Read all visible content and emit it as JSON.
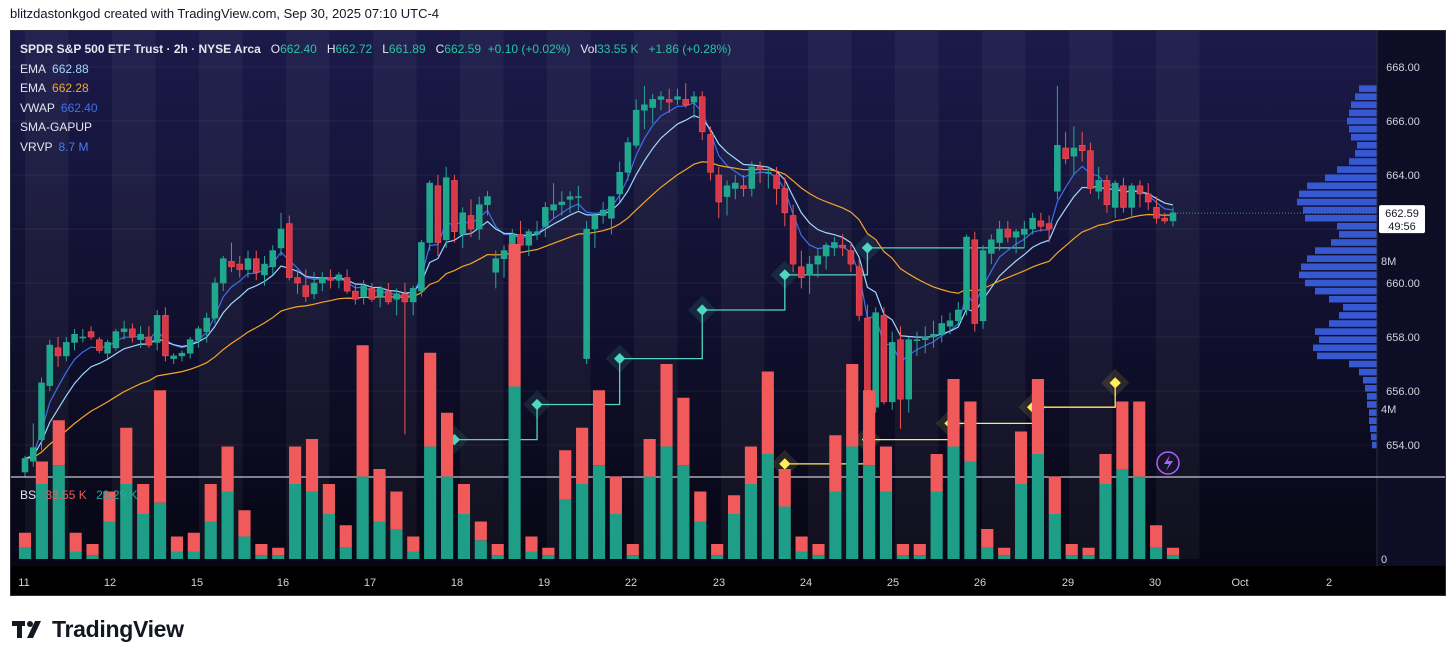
{
  "header": {
    "text": "blitzdastonkgod created with TradingView.com, Sep 30, 2025 07:10 UTC-4"
  },
  "legend": {
    "symbol": "SPDR S&P 500 ETF Trust · 2h · NYSE Arca",
    "open_label": "O",
    "open": "662.40",
    "high_label": "H",
    "high": "662.72",
    "low_label": "L",
    "low": "661.89",
    "close_label": "C",
    "close": "662.59",
    "change": "+0.10 (+0.02%)",
    "vol_label": "Vol",
    "vol": "33.55 K",
    "vol_change": "+1.86 (+0.28%)",
    "indicators": [
      {
        "name": "EMA",
        "value": "662.88"
      },
      {
        "name": "EMA",
        "value": "662.28"
      },
      {
        "name": "VWAP",
        "value": "662.40"
      },
      {
        "name": "SMA-GAPUP",
        "value": ""
      },
      {
        "name": "VRVP",
        "value": "8.7 M"
      }
    ]
  },
  "bs": {
    "label": "BS",
    "sell": "33.55 K",
    "buy": "28.29 K"
  },
  "price_axis": {
    "ticks": [
      "668.00",
      "666.00",
      "664.00",
      "662.00",
      "660.00",
      "658.00",
      "656.00",
      "654.00"
    ]
  },
  "last_price": {
    "value": "662.59",
    "countdown": "49:56"
  },
  "volume_axis": {
    "ticks": [
      "8M",
      "4M",
      "0"
    ]
  },
  "time_axis": {
    "ticks": [
      "11",
      "12",
      "15",
      "16",
      "17",
      "18",
      "19",
      "22",
      "23",
      "24",
      "25",
      "26",
      "29",
      "30",
      "Oct",
      "2"
    ]
  },
  "colors": {
    "bull": "#26a69a",
    "bear": "#ef5350",
    "ema_fast": "#9fd7ff",
    "ema_slow": "#f5a623",
    "vwap": "#3d6ff0",
    "vrvp": "#3a5fe0",
    "gap_teal": "#4fd6c0",
    "gap_yellow": "#ffee58",
    "bs_sell": "#f05a5a",
    "bs_buy": "#1e9e87"
  },
  "footer": {
    "logo_text": "TradingView"
  },
  "chart_data": {
    "type": "candlestick",
    "interval": "2h",
    "ylim": [
      653.0,
      669.0
    ],
    "x_categories": [
      "11",
      "12",
      "15",
      "16",
      "17",
      "18",
      "19",
      "22",
      "23",
      "24",
      "25",
      "26",
      "29",
      "30",
      "Oct",
      "2"
    ],
    "candles": [
      [
        653.0,
        653.6,
        652.8,
        653.5
      ],
      [
        653.4,
        654.8,
        653.2,
        653.9
      ],
      [
        654.2,
        656.5,
        653.8,
        656.3
      ],
      [
        656.2,
        657.9,
        656.0,
        657.7
      ],
      [
        657.6,
        658.0,
        656.9,
        657.3
      ],
      [
        657.3,
        658.0,
        657.1,
        657.8
      ],
      [
        657.8,
        658.3,
        657.5,
        658.1
      ],
      [
        658.0,
        658.3,
        657.8,
        658.0
      ],
      [
        658.2,
        658.4,
        657.9,
        658.0
      ],
      [
        657.9,
        658.0,
        657.4,
        657.5
      ],
      [
        657.4,
        657.9,
        657.2,
        657.8
      ],
      [
        657.6,
        658.3,
        657.5,
        658.2
      ],
      [
        658.2,
        658.6,
        657.9,
        658.3
      ],
      [
        658.3,
        658.5,
        657.8,
        658.0
      ],
      [
        657.9,
        658.4,
        657.6,
        658.1
      ],
      [
        658.0,
        658.4,
        657.6,
        657.7
      ],
      [
        657.8,
        659.0,
        657.5,
        658.8
      ],
      [
        658.8,
        659.1,
        657.1,
        657.3
      ],
      [
        657.2,
        657.4,
        657.0,
        657.3
      ],
      [
        657.3,
        657.5,
        657.1,
        657.4
      ],
      [
        657.4,
        658.0,
        657.2,
        657.9
      ],
      [
        657.9,
        658.4,
        657.6,
        658.3
      ],
      [
        658.2,
        658.9,
        657.8,
        658.7
      ],
      [
        658.7,
        660.2,
        658.5,
        660.0
      ],
      [
        660.0,
        661.0,
        659.7,
        660.9
      ],
      [
        660.8,
        661.5,
        660.4,
        660.6
      ],
      [
        660.7,
        661.0,
        660.2,
        660.5
      ],
      [
        660.5,
        661.2,
        660.2,
        660.9
      ],
      [
        660.9,
        661.2,
        660.1,
        660.4
      ],
      [
        660.3,
        661.0,
        659.9,
        660.7
      ],
      [
        660.6,
        661.4,
        660.3,
        661.2
      ],
      [
        661.3,
        662.6,
        661.0,
        662.0
      ],
      [
        662.2,
        662.5,
        660.1,
        660.2
      ],
      [
        660.2,
        660.5,
        659.6,
        660.0
      ],
      [
        659.9,
        660.5,
        659.3,
        659.5
      ],
      [
        659.6,
        660.4,
        659.4,
        660.0
      ],
      [
        660.0,
        660.4,
        659.7,
        660.2
      ],
      [
        660.2,
        660.5,
        659.8,
        660.1
      ],
      [
        660.1,
        660.4,
        659.8,
        660.3
      ],
      [
        660.2,
        660.5,
        659.6,
        659.7
      ],
      [
        659.7,
        660.0,
        659.2,
        659.4
      ],
      [
        659.5,
        660.1,
        659.2,
        659.9
      ],
      [
        659.8,
        660.0,
        659.3,
        659.4
      ],
      [
        659.5,
        659.9,
        659.1,
        659.8
      ],
      [
        659.7,
        660.0,
        659.2,
        659.3
      ],
      [
        659.4,
        659.8,
        658.8,
        659.6
      ],
      [
        659.6,
        660.0,
        654.4,
        659.3
      ],
      [
        659.3,
        659.9,
        658.8,
        659.8
      ],
      [
        659.7,
        661.6,
        659.5,
        661.5
      ],
      [
        661.5,
        663.8,
        661.2,
        663.7
      ],
      [
        663.6,
        664.0,
        661.0,
        661.5
      ],
      [
        661.6,
        664.3,
        661.3,
        663.9
      ],
      [
        663.8,
        664.0,
        661.5,
        661.9
      ],
      [
        661.8,
        662.8,
        661.3,
        662.6
      ],
      [
        662.5,
        663.1,
        661.7,
        662.0
      ],
      [
        662.0,
        663.2,
        661.6,
        662.9
      ],
      [
        662.9,
        663.4,
        662.5,
        663.2
      ],
      [
        660.4,
        661.2,
        659.8,
        660.9
      ],
      [
        660.9,
        661.4,
        660.2,
        661.2
      ],
      [
        661.3,
        662.0,
        660.2,
        661.8
      ],
      [
        661.8,
        662.3,
        661.4,
        661.4
      ],
      [
        661.4,
        662.0,
        661.0,
        661.9
      ],
      [
        661.8,
        662.3,
        661.6,
        661.9
      ],
      [
        662.1,
        663.0,
        661.7,
        662.8
      ],
      [
        662.7,
        663.7,
        662.4,
        662.9
      ],
      [
        662.9,
        663.4,
        662.5,
        663.0
      ],
      [
        663.1,
        663.4,
        662.6,
        663.2
      ],
      [
        663.2,
        663.6,
        662.7,
        663.2
      ],
      [
        657.2,
        662.3,
        657.0,
        662.0
      ],
      [
        662.0,
        662.6,
        661.3,
        662.5
      ],
      [
        662.5,
        663.0,
        662.2,
        662.7
      ],
      [
        662.4,
        663.1,
        661.8,
        663.2
      ],
      [
        663.3,
        664.5,
        663.0,
        664.1
      ],
      [
        664.1,
        665.4,
        663.8,
        665.2
      ],
      [
        665.1,
        666.8,
        665.0,
        666.4
      ],
      [
        666.4,
        667.3,
        665.7,
        666.6
      ],
      [
        666.5,
        667.0,
        665.9,
        666.8
      ],
      [
        666.8,
        667.1,
        666.4,
        666.9
      ],
      [
        666.8,
        667.2,
        666.3,
        666.7
      ],
      [
        666.8,
        667.2,
        666.6,
        666.9
      ],
      [
        666.8,
        667.4,
        666.5,
        666.6
      ],
      [
        666.7,
        667.1,
        666.1,
        666.9
      ],
      [
        666.9,
        667.1,
        665.3,
        665.6
      ],
      [
        665.5,
        665.8,
        663.8,
        664.1
      ],
      [
        664.0,
        664.3,
        662.4,
        663.0
      ],
      [
        663.2,
        663.8,
        662.5,
        663.6
      ],
      [
        663.5,
        664.0,
        663.1,
        663.7
      ],
      [
        663.6,
        664.0,
        663.2,
        663.5
      ],
      [
        663.5,
        664.5,
        663.2,
        664.3
      ],
      [
        664.3,
        664.5,
        663.7,
        664.2
      ],
      [
        664.1,
        664.3,
        663.5,
        664.1
      ],
      [
        664.0,
        664.3,
        662.9,
        663.5
      ],
      [
        663.5,
        663.9,
        662.1,
        662.6
      ],
      [
        662.5,
        662.9,
        660.4,
        660.7
      ],
      [
        660.6,
        661.2,
        659.8,
        660.2
      ],
      [
        660.3,
        661.0,
        659.6,
        660.7
      ],
      [
        660.7,
        661.3,
        660.2,
        661.0
      ],
      [
        661.0,
        661.5,
        660.5,
        661.4
      ],
      [
        661.3,
        661.7,
        661.0,
        661.5
      ],
      [
        661.4,
        661.8,
        661.0,
        661.3
      ],
      [
        661.2,
        661.5,
        660.4,
        660.7
      ],
      [
        660.6,
        660.9,
        658.6,
        658.8
      ],
      [
        658.7,
        659.2,
        655.0,
        655.4
      ],
      [
        655.4,
        659.1,
        655.2,
        658.9
      ],
      [
        658.8,
        659.1,
        655.5,
        655.6
      ],
      [
        655.6,
        658.2,
        655.3,
        657.8
      ],
      [
        657.9,
        658.4,
        654.6,
        655.7
      ],
      [
        655.7,
        658.0,
        655.2,
        657.9
      ],
      [
        657.9,
        658.2,
        657.3,
        657.9
      ],
      [
        657.9,
        658.4,
        657.4,
        658.0
      ],
      [
        658.0,
        658.6,
        657.6,
        658.1
      ],
      [
        658.1,
        658.8,
        657.8,
        658.5
      ],
      [
        658.4,
        658.9,
        658.1,
        658.6
      ],
      [
        658.6,
        659.3,
        658.4,
        659.0
      ],
      [
        659.0,
        661.8,
        658.8,
        661.7
      ],
      [
        661.6,
        661.9,
        658.2,
        658.5
      ],
      [
        658.6,
        661.4,
        658.3,
        661.2
      ],
      [
        661.1,
        661.8,
        660.7,
        661.6
      ],
      [
        661.5,
        662.3,
        661.2,
        662.0
      ],
      [
        662.0,
        662.3,
        661.5,
        661.7
      ],
      [
        661.7,
        662.0,
        661.1,
        661.9
      ],
      [
        661.8,
        662.3,
        661.3,
        662.0
      ],
      [
        662.0,
        662.6,
        661.8,
        662.4
      ],
      [
        662.3,
        662.6,
        661.9,
        662.1
      ],
      [
        662.2,
        662.5,
        661.5,
        662.0
      ],
      [
        663.4,
        667.3,
        663.1,
        665.1
      ],
      [
        665.0,
        665.6,
        664.4,
        664.6
      ],
      [
        664.7,
        665.8,
        664.0,
        665.0
      ],
      [
        665.1,
        665.6,
        664.5,
        664.9
      ],
      [
        664.9,
        665.2,
        663.3,
        663.5
      ],
      [
        663.4,
        664.3,
        663.1,
        663.8
      ],
      [
        663.8,
        664.0,
        662.6,
        662.9
      ],
      [
        662.8,
        663.8,
        662.4,
        663.7
      ],
      [
        663.6,
        663.9,
        662.6,
        662.8
      ],
      [
        662.8,
        663.7,
        662.4,
        663.6
      ],
      [
        663.6,
        663.8,
        662.8,
        663.3
      ],
      [
        663.3,
        663.7,
        662.7,
        663.0
      ],
      [
        662.8,
        663.2,
        662.2,
        662.4
      ],
      [
        662.4,
        662.6,
        662.2,
        662.3
      ],
      [
        662.3,
        662.8,
        662.1,
        662.6
      ]
    ],
    "ema_fast_last": 662.88,
    "ema_slow_last": 662.28,
    "vwap_last": 662.4,
    "sma_gapup_steps_teal": [
      654.2,
      654.2,
      654.2,
      654.2,
      654.2,
      654.2,
      654.2,
      654.2,
      654.2,
      654.2,
      655.5,
      655.5,
      655.5,
      655.5,
      655.5,
      655.5,
      655.5,
      655.5,
      655.5,
      655.5,
      657.2,
      657.2,
      657.2,
      657.2,
      657.2,
      657.2,
      657.2,
      657.2,
      657.2,
      657.2,
      659.0,
      659.0,
      659.0,
      659.0,
      659.0,
      659.0,
      659.0,
      659.0,
      659.0,
      659.0,
      660.3,
      660.3,
      660.3,
      660.3,
      660.3,
      660.3,
      660.3,
      660.3,
      660.3,
      660.3,
      661.3,
      661.3,
      661.3,
      661.3,
      661.3,
      661.3,
      661.3,
      661.3,
      661.3,
      661.3,
      661.3,
      661.3,
      661.3,
      661.3,
      661.3,
      661.3,
      661.3,
      661.3,
      661.3,
      661.3
    ],
    "sma_gapup_steps_yellow": [
      653.3,
      653.3,
      653.3,
      653.3,
      653.3,
      653.3,
      653.3,
      653.3,
      653.3,
      653.3,
      654.2,
      654.2,
      654.2,
      654.2,
      654.2,
      654.2,
      654.2,
      654.2,
      654.2,
      654.2,
      654.8,
      654.8,
      654.8,
      654.8,
      654.8,
      654.8,
      654.8,
      654.8,
      654.8,
      654.8,
      655.4,
      655.4,
      655.4,
      655.4,
      655.4,
      655.4,
      655.4,
      655.4,
      655.4,
      655.4,
      656.3
    ],
    "volume_profile": [
      [
        667.2,
        18
      ],
      [
        666.9,
        22
      ],
      [
        666.6,
        26
      ],
      [
        666.3,
        28
      ],
      [
        666.0,
        30
      ],
      [
        665.7,
        28
      ],
      [
        665.4,
        26
      ],
      [
        665.1,
        20
      ],
      [
        664.8,
        22
      ],
      [
        664.5,
        28
      ],
      [
        664.2,
        40
      ],
      [
        663.9,
        52
      ],
      [
        663.6,
        70
      ],
      [
        663.3,
        78
      ],
      [
        663.0,
        80
      ],
      [
        662.7,
        74
      ],
      [
        662.4,
        72
      ],
      [
        662.1,
        40
      ],
      [
        661.8,
        38
      ],
      [
        661.5,
        46
      ],
      [
        661.2,
        62
      ],
      [
        660.9,
        70
      ],
      [
        660.6,
        76
      ],
      [
        660.3,
        78
      ],
      [
        660.0,
        72
      ],
      [
        659.7,
        62
      ],
      [
        659.4,
        48
      ],
      [
        659.1,
        34
      ],
      [
        658.8,
        38
      ],
      [
        658.5,
        48
      ],
      [
        658.2,
        62
      ],
      [
        657.9,
        58
      ],
      [
        657.6,
        64
      ],
      [
        657.3,
        60
      ],
      [
        657.0,
        28
      ],
      [
        656.7,
        18
      ],
      [
        656.4,
        14
      ],
      [
        656.1,
        12
      ],
      [
        655.8,
        10
      ],
      [
        655.5,
        10
      ],
      [
        655.2,
        8
      ],
      [
        654.9,
        8
      ],
      [
        654.6,
        7
      ],
      [
        654.3,
        6
      ],
      [
        654.0,
        5
      ]
    ],
    "bs_volume_M": [
      [
        0.4,
        0.3
      ],
      [
        0.6,
        2.0
      ],
      [
        1.2,
        2.5
      ],
      [
        0.5,
        0.2
      ],
      [
        0.3,
        0.1
      ],
      [
        0.8,
        1.0
      ],
      [
        1.5,
        2.0
      ],
      [
        0.8,
        1.2
      ],
      [
        3.0,
        1.5
      ],
      [
        0.4,
        0.2
      ],
      [
        0.5,
        0.2
      ],
      [
        1.0,
        1.0
      ],
      [
        1.2,
        1.8
      ],
      [
        0.7,
        0.6
      ],
      [
        0.3,
        0.1
      ],
      [
        0.2,
        0.1
      ],
      [
        1.0,
        2.0
      ],
      [
        1.4,
        1.8
      ],
      [
        0.8,
        1.2
      ],
      [
        0.6,
        0.3
      ],
      [
        3.5,
        2.2
      ],
      [
        1.4,
        1.0
      ],
      [
        1.0,
        0.8
      ],
      [
        0.4,
        0.2
      ],
      [
        2.5,
        3.0
      ],
      [
        1.7,
        2.2
      ],
      [
        0.8,
        1.2
      ],
      [
        0.5,
        0.5
      ],
      [
        0.3,
        0.1
      ],
      [
        3.8,
        4.6
      ],
      [
        0.4,
        0.2
      ],
      [
        0.2,
        0.1
      ],
      [
        1.3,
        1.6
      ],
      [
        1.5,
        2.0
      ],
      [
        2.0,
        2.5
      ],
      [
        1.0,
        1.2
      ],
      [
        0.3,
        0.1
      ],
      [
        1.0,
        2.2
      ],
      [
        2.2,
        3.0
      ],
      [
        1.8,
        2.5
      ],
      [
        0.8,
        1.0
      ],
      [
        0.3,
        0.1
      ],
      [
        0.5,
        1.2
      ],
      [
        1.0,
        2.0
      ],
      [
        2.2,
        2.8
      ],
      [
        1.0,
        1.4
      ],
      [
        0.4,
        0.2
      ],
      [
        0.3,
        0.1
      ],
      [
        1.5,
        1.8
      ],
      [
        2.2,
        3.0
      ],
      [
        2.0,
        2.5
      ],
      [
        1.2,
        1.8
      ],
      [
        0.3,
        0.1
      ],
      [
        0.3,
        0.1
      ],
      [
        1.0,
        1.8
      ],
      [
        1.8,
        3.0
      ],
      [
        1.6,
        2.6
      ],
      [
        0.5,
        0.3
      ],
      [
        0.2,
        0.1
      ],
      [
        1.4,
        2.0
      ],
      [
        2.0,
        2.8
      ],
      [
        1.0,
        1.2
      ],
      [
        0.3,
        0.1
      ],
      [
        0.2,
        0.1
      ],
      [
        0.8,
        2.0
      ],
      [
        1.8,
        2.4
      ],
      [
        2.0,
        2.2
      ],
      [
        0.6,
        0.3
      ],
      [
        0.2,
        0.1
      ]
    ]
  }
}
